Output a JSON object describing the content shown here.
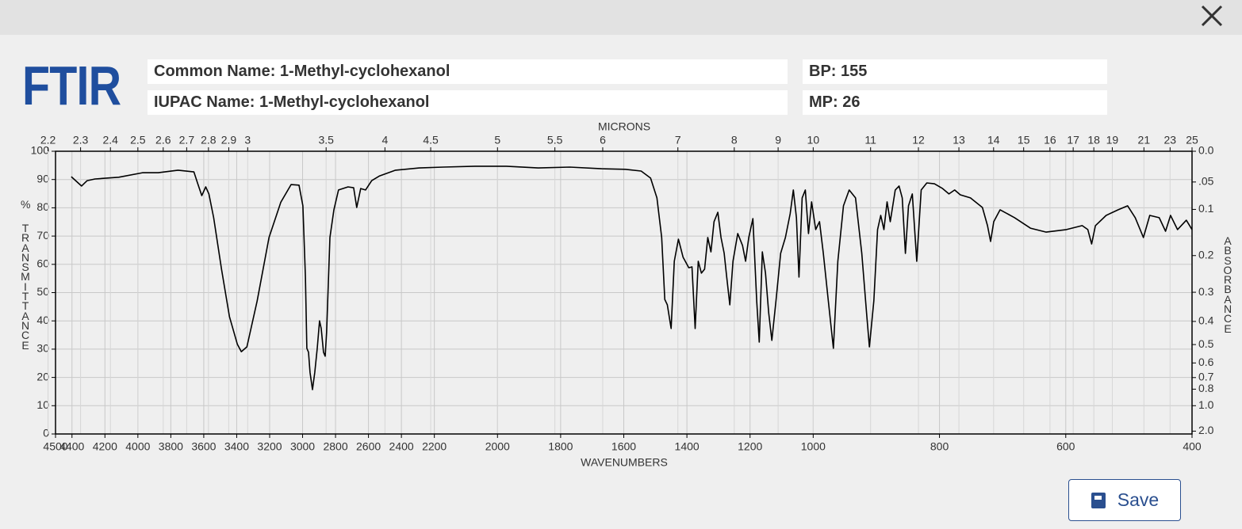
{
  "header": {
    "logo": "FTIR",
    "common_name": "Common Name: 1-Methyl-cyclohexanol",
    "iupac_name": "IUPAC Name: 1-Methyl-cyclohexanol",
    "bp": "BP: 155",
    "mp": "MP: 26"
  },
  "chart_data": {
    "type": "line",
    "x_label": "WAVENUMBERS",
    "x2_label": "MICRONS",
    "y_unit": "%",
    "y_label": "TRANSMITTANCE",
    "y2_label": "ABSORBANCE",
    "xlim": [
      4500,
      400
    ],
    "xbreaks": [
      2200,
      1000
    ],
    "xticks": [
      4500,
      4400,
      4200,
      4000,
      3800,
      3600,
      3400,
      3200,
      3000,
      2800,
      2600,
      2400,
      2200,
      2000,
      1800,
      1600,
      1400,
      1200,
      1000,
      800,
      600,
      400
    ],
    "x2ticks": [
      2.2,
      2.3,
      2.4,
      2.5,
      2.6,
      2.7,
      2.8,
      2.9,
      3,
      3.5,
      4,
      4.5,
      5,
      5.5,
      6,
      7,
      8,
      9,
      10,
      11,
      12,
      13,
      14,
      15,
      16,
      17,
      18,
      19,
      21,
      23,
      25
    ],
    "ylim": [
      0,
      100
    ],
    "yticks": [
      0,
      10,
      20,
      30,
      40,
      50,
      60,
      70,
      80,
      90,
      100
    ],
    "y2ticks": [
      {
        "value": 0,
        "label": "0.0"
      },
      {
        "value": 0.05,
        "label": ".05"
      },
      0.1,
      0.2,
      0.3,
      0.4,
      0.5,
      0.6,
      0.7,
      0.8,
      {
        "value": 1,
        "label": "1.0"
      },
      {
        "value": 2,
        "label": "2.0"
      }
    ],
    "grid": true,
    "color": "#000000",
    "x": [
      4404,
      4342,
      4308,
      4260,
      4116,
      3972,
      3876,
      3756,
      3660,
      3636,
      3612,
      3588,
      3569,
      3540,
      3492,
      3444,
      3396,
      3372,
      3338,
      3276,
      3204,
      3132,
      3070,
      3022,
      2998,
      2983,
      2974,
      2964,
      2955,
      2940,
      2926,
      2911,
      2897,
      2887,
      2873,
      2863,
      2854,
      2834,
      2810,
      2782,
      2724,
      2690,
      2671,
      2647,
      2618,
      2580,
      2532,
      2436,
      2292,
      2172,
      2072,
      1972,
      1871,
      1771,
      1670,
      1595,
      1545,
      1515,
      1495,
      1480,
      1470,
      1462,
      1450,
      1440,
      1427,
      1412,
      1394,
      1384,
      1374,
      1364,
      1354,
      1344,
      1334,
      1324,
      1314,
      1302,
      1292,
      1282,
      1274,
      1264,
      1254,
      1239,
      1224,
      1214,
      1204,
      1191,
      1179,
      1171,
      1161,
      1151,
      1141,
      1131,
      1118,
      1103,
      1088,
      1073,
      1063,
      1053,
      1045,
      1035,
      1025,
      1015,
      1005,
      996,
      990,
      984,
      976,
      968,
      961,
      952,
      943,
      933,
      923,
      915,
      911,
      904,
      898,
      893,
      888,
      883,
      878,
      870,
      864,
      859,
      854,
      849,
      843,
      836,
      829,
      820,
      808,
      795,
      785,
      776,
      767,
      751,
      732,
      724,
      719,
      714,
      704,
      681,
      656,
      631,
      599,
      574,
      565,
      559,
      553,
      536,
      517,
      502,
      490,
      477,
      467,
      452,
      442,
      434,
      423,
      409,
      400
    ],
    "values": [
      91,
      87.7,
      89.6,
      90.2,
      90.8,
      92.4,
      92.4,
      93.3,
      92.7,
      88.5,
      84.3,
      87.4,
      84.9,
      76.5,
      58.3,
      41.5,
      31.7,
      29.1,
      30.8,
      47,
      69.5,
      82,
      88.2,
      88,
      80.7,
      55.5,
      30.3,
      28.9,
      21.8,
      15.7,
      21.8,
      30.3,
      40,
      37.3,
      28.9,
      27.5,
      35.9,
      69.5,
      79.3,
      86.3,
      87.4,
      87.1,
      80.1,
      86.8,
      86.3,
      89.6,
      91.3,
      93.3,
      94.1,
      94.4,
      94.7,
      94.7,
      94.1,
      94.4,
      93.8,
      93.6,
      93,
      90.5,
      83.5,
      69.5,
      47.6,
      45.7,
      37.3,
      61.1,
      68.9,
      62.5,
      58.8,
      59.1,
      37.3,
      61.1,
      56.9,
      58.3,
      69.5,
      64.4,
      75.1,
      78.4,
      69.5,
      63.9,
      55.5,
      45.7,
      61.1,
      70.9,
      66.7,
      61.1,
      69.5,
      76.2,
      47.1,
      32.5,
      64.4,
      56.9,
      42.9,
      33.1,
      47.1,
      63.9,
      69.5,
      77.9,
      86.3,
      76.5,
      55.5,
      83.5,
      86.3,
      70.9,
      82.1,
      72.3,
      75.1,
      63.9,
      47.1,
      30.3,
      61.1,
      80.7,
      86.3,
      83.5,
      63.9,
      41.5,
      30.8,
      47.1,
      72.3,
      77.3,
      72.3,
      82.1,
      75.1,
      86.3,
      87.7,
      83.5,
      63.9,
      80.7,
      84.9,
      61.1,
      86.3,
      88.8,
      88.5,
      86.8,
      84.9,
      86.3,
      84.6,
      83.5,
      80.1,
      73.7,
      68.1,
      75.1,
      79.3,
      76.5,
      72.8,
      71.4,
      72.3,
      73.7,
      72.3,
      67.2,
      73.7,
      77.3,
      79.3,
      80.7,
      76.5,
      69.5,
      77.3,
      76.5,
      71.7,
      77.3,
      72.3,
      75.6,
      72.3
    ]
  },
  "actions": {
    "save": "Save"
  }
}
